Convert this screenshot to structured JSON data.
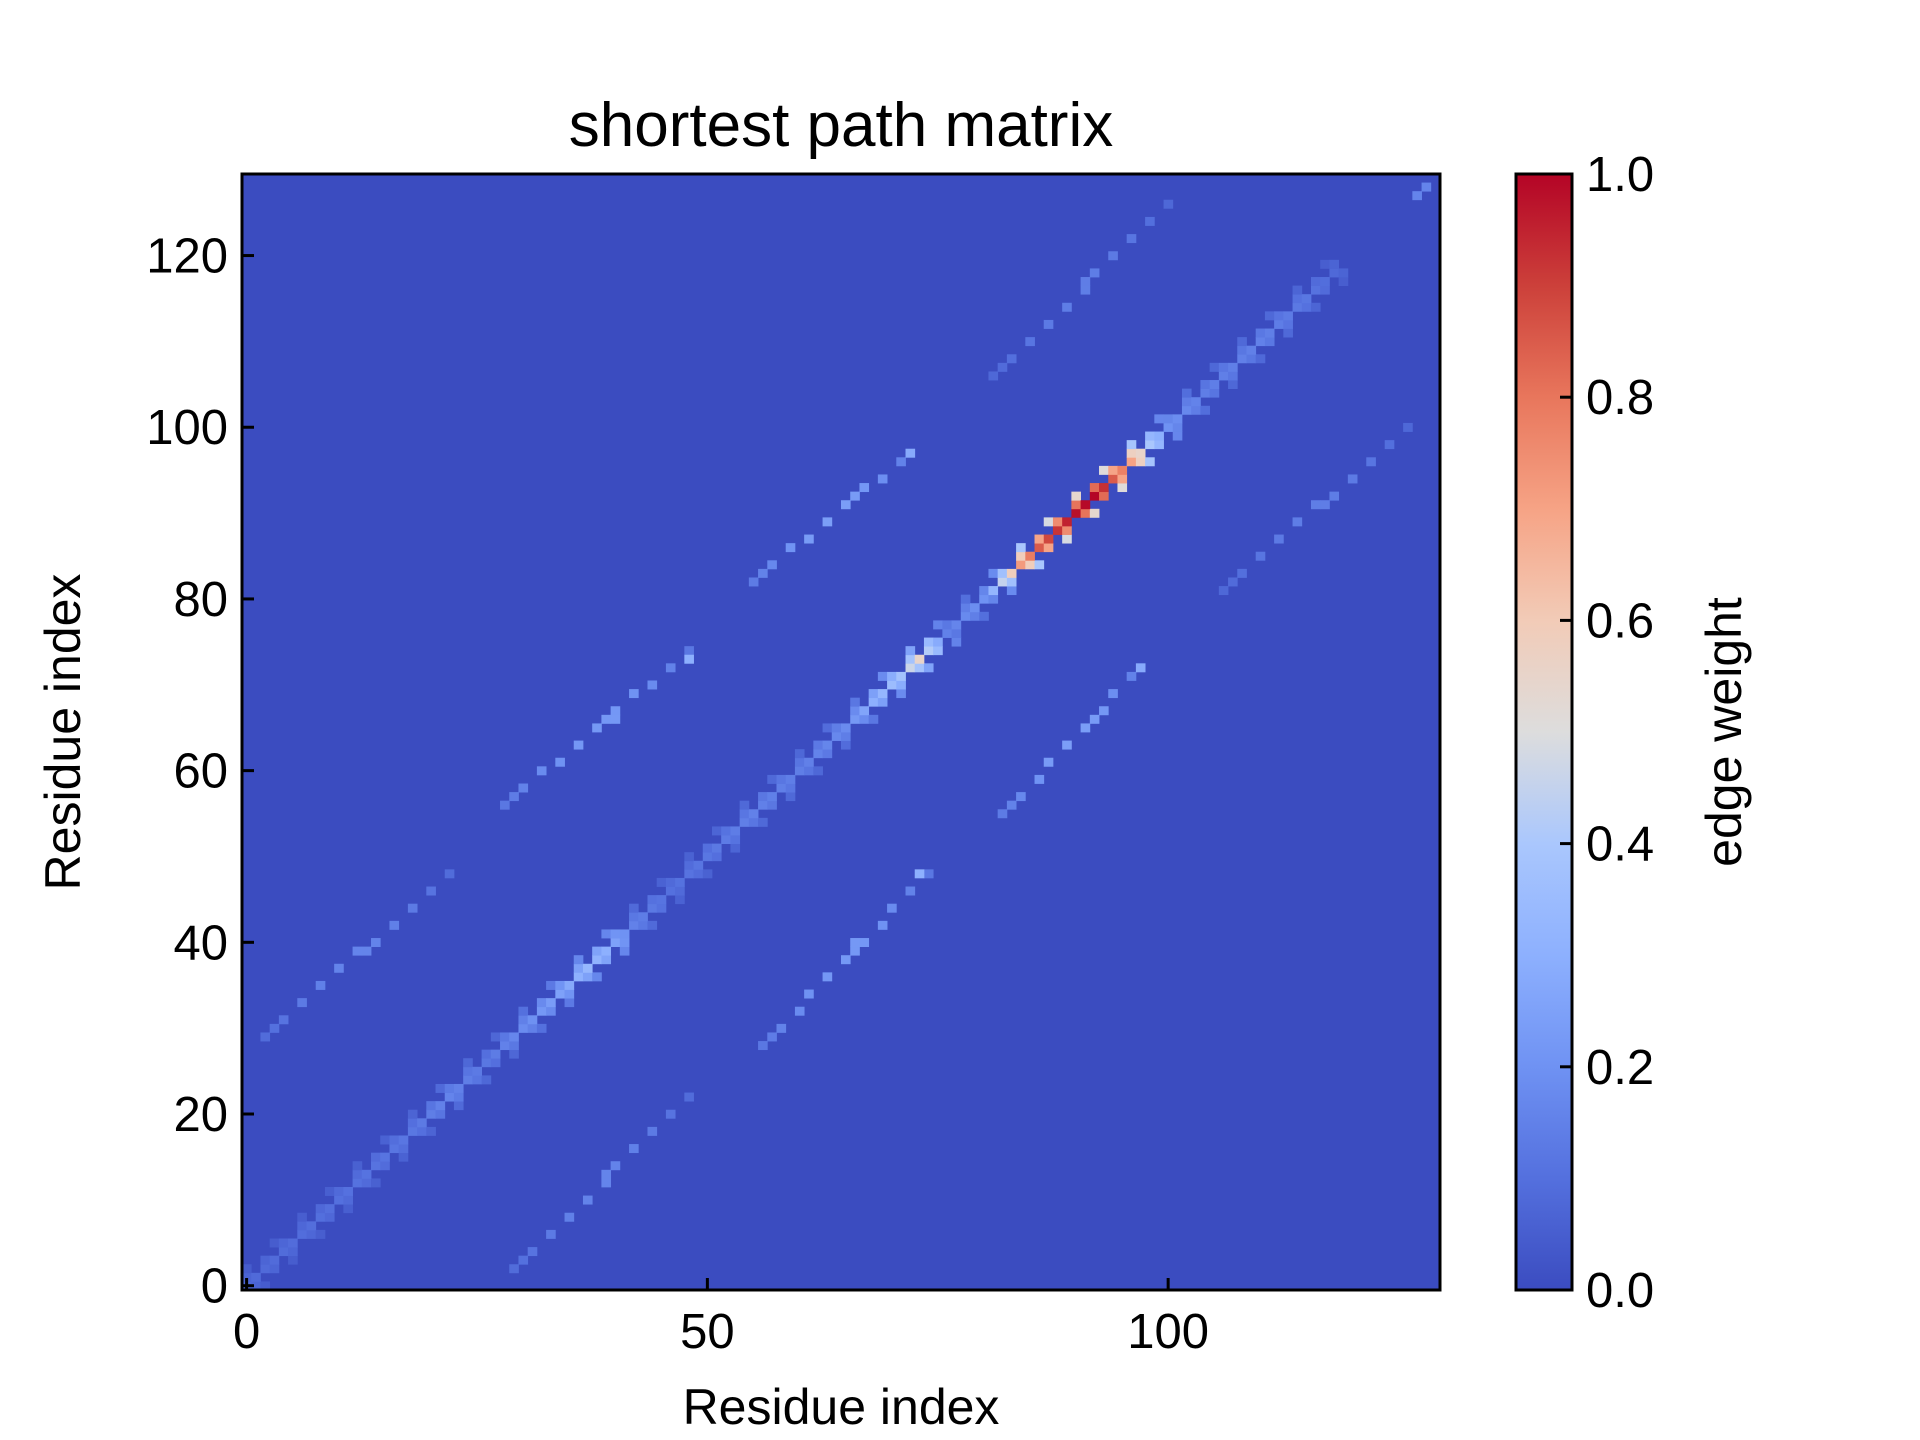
{
  "chart_data": {
    "type": "heatmap",
    "title": "shortest path matrix",
    "xlabel": "Residue index",
    "ylabel": "Residue index",
    "colorbar_label": "edge weight",
    "colormap": "coolwarm",
    "matrix_size": 130,
    "xlim": [
      -0.5,
      129.5
    ],
    "ylim": [
      -0.5,
      129.5
    ],
    "xticks": [
      0,
      50,
      100
    ],
    "yticks": [
      0,
      20,
      40,
      60,
      80,
      100,
      120
    ],
    "colorbar_ticks": [
      0.0,
      0.2,
      0.4,
      0.6,
      0.8,
      1.0
    ],
    "colorbar_tick_labels": [
      "0.0",
      "0.2",
      "0.4",
      "0.6",
      "0.8",
      "1.0"
    ],
    "vmin": 0.0,
    "vmax": 1.0,
    "background_value": 0.0,
    "colors": {
      "low": "#3b4cc0",
      "mid": "#dddddd",
      "high": "#b40426"
    },
    "diagonal_profile": [
      [
        0,
        0.08
      ],
      [
        10,
        0.1
      ],
      [
        18,
        0.12
      ],
      [
        22,
        0.16
      ],
      [
        26,
        0.12
      ],
      [
        30,
        0.18
      ],
      [
        34,
        0.25
      ],
      [
        37,
        0.33
      ],
      [
        39,
        0.3
      ],
      [
        42,
        0.15
      ],
      [
        46,
        0.1
      ],
      [
        50,
        0.12
      ],
      [
        55,
        0.15
      ],
      [
        60,
        0.14
      ],
      [
        65,
        0.18
      ],
      [
        68,
        0.3
      ],
      [
        71,
        0.38
      ],
      [
        73,
        0.55
      ],
      [
        76,
        0.15
      ],
      [
        80,
        0.2
      ],
      [
        82,
        0.45
      ],
      [
        84,
        0.72
      ],
      [
        86,
        0.85
      ],
      [
        88,
        0.92
      ],
      [
        90,
        0.98
      ],
      [
        92,
        1.0
      ],
      [
        94,
        0.85
      ],
      [
        96,
        0.7
      ],
      [
        98,
        0.4
      ],
      [
        100,
        0.2
      ],
      [
        104,
        0.14
      ],
      [
        110,
        0.15
      ],
      [
        115,
        0.12
      ],
      [
        118,
        0.08
      ]
    ],
    "off_diagonal_bands": [
      {
        "from": [
          29,
          2
        ],
        "to": [
          48,
          22
        ],
        "peak": 0.16
      },
      {
        "from": [
          2,
          29
        ],
        "to": [
          22,
          48
        ],
        "peak": 0.16
      },
      {
        "from": [
          56,
          28
        ],
        "to": [
          74,
          48
        ],
        "peak": 0.22
      },
      {
        "from": [
          28,
          56
        ],
        "to": [
          48,
          74
        ],
        "peak": 0.22
      },
      {
        "from": [
          82,
          55
        ],
        "to": [
          97,
          72
        ],
        "peak": 0.24
      },
      {
        "from": [
          55,
          82
        ],
        "to": [
          72,
          97
        ],
        "peak": 0.24
      },
      {
        "from": [
          106,
          81
        ],
        "to": [
          126,
          100
        ],
        "peak": 0.14
      },
      {
        "from": [
          81,
          106
        ],
        "to": [
          100,
          126
        ],
        "peak": 0.14
      }
    ],
    "isolated_points": [
      {
        "x": 73,
        "y": 48,
        "value": 0.3
      },
      {
        "x": 48,
        "y": 73,
        "value": 0.3
      },
      {
        "x": 72,
        "y": 97,
        "value": 0.28
      },
      {
        "x": 97,
        "y": 72,
        "value": 0.28
      },
      {
        "x": 66,
        "y": 40,
        "value": 0.22
      },
      {
        "x": 40,
        "y": 66,
        "value": 0.22
      },
      {
        "x": 127,
        "y": 127,
        "value": 0.16
      },
      {
        "x": 128,
        "y": 128,
        "value": 0.16
      }
    ]
  }
}
